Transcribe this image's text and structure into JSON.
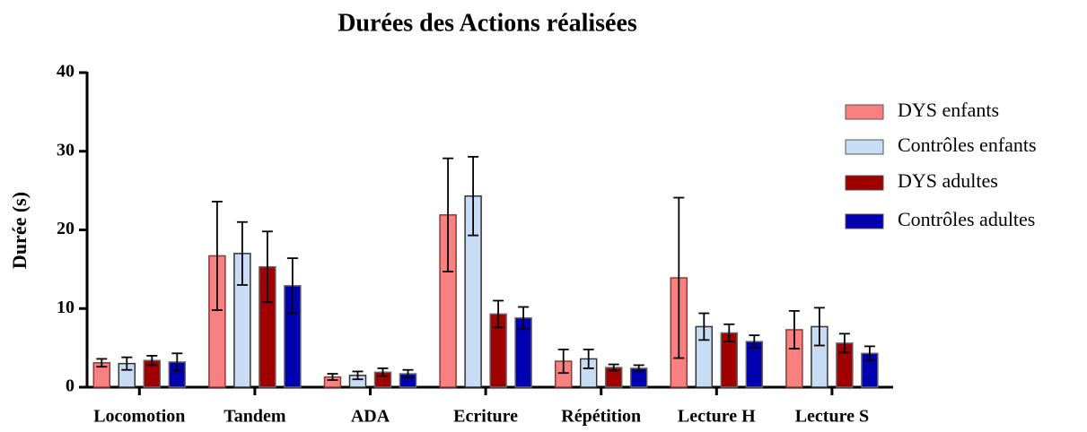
{
  "chart_data": {
    "type": "bar",
    "title": "Durées des Actions réalisées",
    "y_label": "Durée (s)",
    "categories": [
      "Locomotion",
      "Tandem",
      "ADA",
      "Ecriture",
      "Répétition",
      "Lecture H",
      "Lecture S"
    ],
    "series": [
      {
        "name": "DYS enfants",
        "color": "#f88080",
        "values": [
          3.1,
          16.7,
          1.3,
          21.9,
          3.3,
          13.9,
          7.3
        ],
        "errors": [
          0.5,
          6.9,
          0.4,
          7.2,
          1.5,
          10.2,
          2.4
        ]
      },
      {
        "name": "Contrôles enfants",
        "color": "#c9dcf5",
        "values": [
          3.0,
          17.0,
          1.5,
          24.3,
          3.6,
          7.7,
          7.7
        ],
        "errors": [
          0.8,
          4.0,
          0.5,
          5.0,
          1.2,
          1.7,
          2.4
        ]
      },
      {
        "name": "DYS adultes",
        "color": "#a00000",
        "values": [
          3.4,
          15.3,
          1.9,
          9.3,
          2.5,
          6.9,
          5.6
        ],
        "errors": [
          0.6,
          4.5,
          0.5,
          1.7,
          0.4,
          1.1,
          1.2
        ]
      },
      {
        "name": "Contrôles adultes",
        "color": "#0000b0",
        "values": [
          3.2,
          12.9,
          1.7,
          8.8,
          2.4,
          5.8,
          4.3
        ],
        "errors": [
          1.1,
          3.5,
          0.5,
          1.4,
          0.4,
          0.8,
          0.9
        ]
      }
    ],
    "ylim": [
      0,
      40
    ],
    "yticks": [
      0,
      10,
      20,
      30,
      40
    ],
    "grid": false,
    "legend": "right"
  }
}
